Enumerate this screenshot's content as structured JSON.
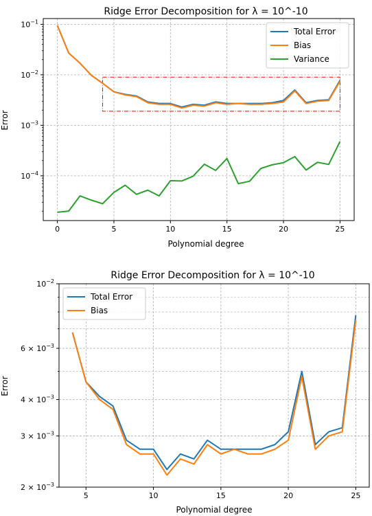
{
  "chart_data": [
    {
      "type": "line",
      "title": "Ridge Error Decomposition for λ = 10^-10",
      "xlabel": "Polynomial degree",
      "ylabel": "Error",
      "yscale": "log",
      "xlim": [
        -1.25,
        26.25
      ],
      "ylim": [
        1.3e-05,
        0.13
      ],
      "grid": true,
      "legend_position": "top-right",
      "x_ticks": [
        0,
        5,
        10,
        15,
        20,
        25
      ],
      "y_ticks": [
        {
          "value": 0.1,
          "base": "10",
          "exp": "−1"
        },
        {
          "value": 0.01,
          "base": "10",
          "exp": "−2"
        },
        {
          "value": 0.001,
          "base": "10",
          "exp": "−3"
        },
        {
          "value": 0.0001,
          "base": "10",
          "exp": "−4"
        }
      ],
      "x": [
        0,
        1,
        2,
        3,
        4,
        5,
        6,
        7,
        8,
        9,
        10,
        11,
        12,
        13,
        14,
        15,
        16,
        17,
        18,
        19,
        20,
        21,
        22,
        23,
        24,
        25
      ],
      "series": [
        {
          "name": "Total Error",
          "color": "#1f77b4",
          "values": [
            0.095,
            0.027,
            0.017,
            0.0098,
            0.0068,
            0.0046,
            0.0041,
            0.0038,
            0.0029,
            0.0027,
            0.0027,
            0.0023,
            0.0026,
            0.0025,
            0.0029,
            0.0027,
            0.0027,
            0.0027,
            0.0027,
            0.0028,
            0.0031,
            0.005,
            0.0028,
            0.0031,
            0.0032,
            0.0078
          ]
        },
        {
          "name": "Bias",
          "color": "#ff7f0e",
          "values": [
            0.095,
            0.027,
            0.017,
            0.0098,
            0.0068,
            0.0046,
            0.004,
            0.0037,
            0.0028,
            0.0026,
            0.0026,
            0.0022,
            0.0025,
            0.0024,
            0.0028,
            0.0026,
            0.0027,
            0.0026,
            0.0026,
            0.0027,
            0.0029,
            0.0048,
            0.0027,
            0.003,
            0.0031,
            0.0075
          ]
        },
        {
          "name": "Variance",
          "color": "#2ca02c",
          "values": [
            1.9e-05,
            2e-05,
            4e-05,
            3.3e-05,
            2.8e-05,
            4.7e-05,
            6.5e-05,
            4.3e-05,
            5.2e-05,
            4e-05,
            8e-05,
            7.9e-05,
            9.8e-05,
            0.00017,
            0.000128,
            0.00022,
            7e-05,
            7.8e-05,
            0.00014,
            0.000165,
            0.000182,
            0.00024,
            0.00013,
            0.000185,
            0.000168,
            0.00048
          ]
        }
      ],
      "annotation": {
        "type": "dash-dot rectangle",
        "color": "#ff0000",
        "x_range": [
          4,
          25
        ],
        "y_range": [
          0.0019,
          0.009
        ]
      }
    },
    {
      "type": "line",
      "title": "Ridge Error Decomposition for λ = 10^-10",
      "xlabel": "Polynomial degree",
      "ylabel": "Error",
      "yscale": "log",
      "xlim": [
        3.0,
        26.0
      ],
      "ylim": [
        0.002,
        0.01
      ],
      "grid": true,
      "legend_position": "top-left",
      "x_ticks": [
        5,
        10,
        15,
        20,
        25
      ],
      "y_ticks": [
        {
          "value": 0.01,
          "base": "10",
          "exp": "−2"
        },
        {
          "value": 0.006,
          "base": "6 × 10",
          "exp": "−3"
        },
        {
          "value": 0.004,
          "base": "4 × 10",
          "exp": "−3"
        },
        {
          "value": 0.003,
          "base": "3 × 10",
          "exp": "−3"
        },
        {
          "value": 0.002,
          "base": "2 × 10",
          "exp": "−3"
        }
      ],
      "x": [
        4,
        5,
        6,
        7,
        8,
        9,
        10,
        11,
        12,
        13,
        14,
        15,
        16,
        17,
        18,
        19,
        20,
        21,
        22,
        23,
        24,
        25
      ],
      "series": [
        {
          "name": "Total Error",
          "color": "#1f77b4",
          "values": [
            0.0068,
            0.0046,
            0.0041,
            0.0038,
            0.0029,
            0.0027,
            0.0027,
            0.0023,
            0.0026,
            0.0025,
            0.0029,
            0.0027,
            0.0027,
            0.0027,
            0.0027,
            0.0028,
            0.0031,
            0.005,
            0.0028,
            0.0031,
            0.0032,
            0.0078
          ]
        },
        {
          "name": "Bias",
          "color": "#ff7f0e",
          "values": [
            0.0068,
            0.0046,
            0.004,
            0.0037,
            0.0028,
            0.0026,
            0.0026,
            0.0022,
            0.0025,
            0.0024,
            0.0028,
            0.0026,
            0.0027,
            0.0026,
            0.0026,
            0.0027,
            0.0029,
            0.0048,
            0.0027,
            0.003,
            0.0031,
            0.0075
          ]
        }
      ]
    }
  ]
}
